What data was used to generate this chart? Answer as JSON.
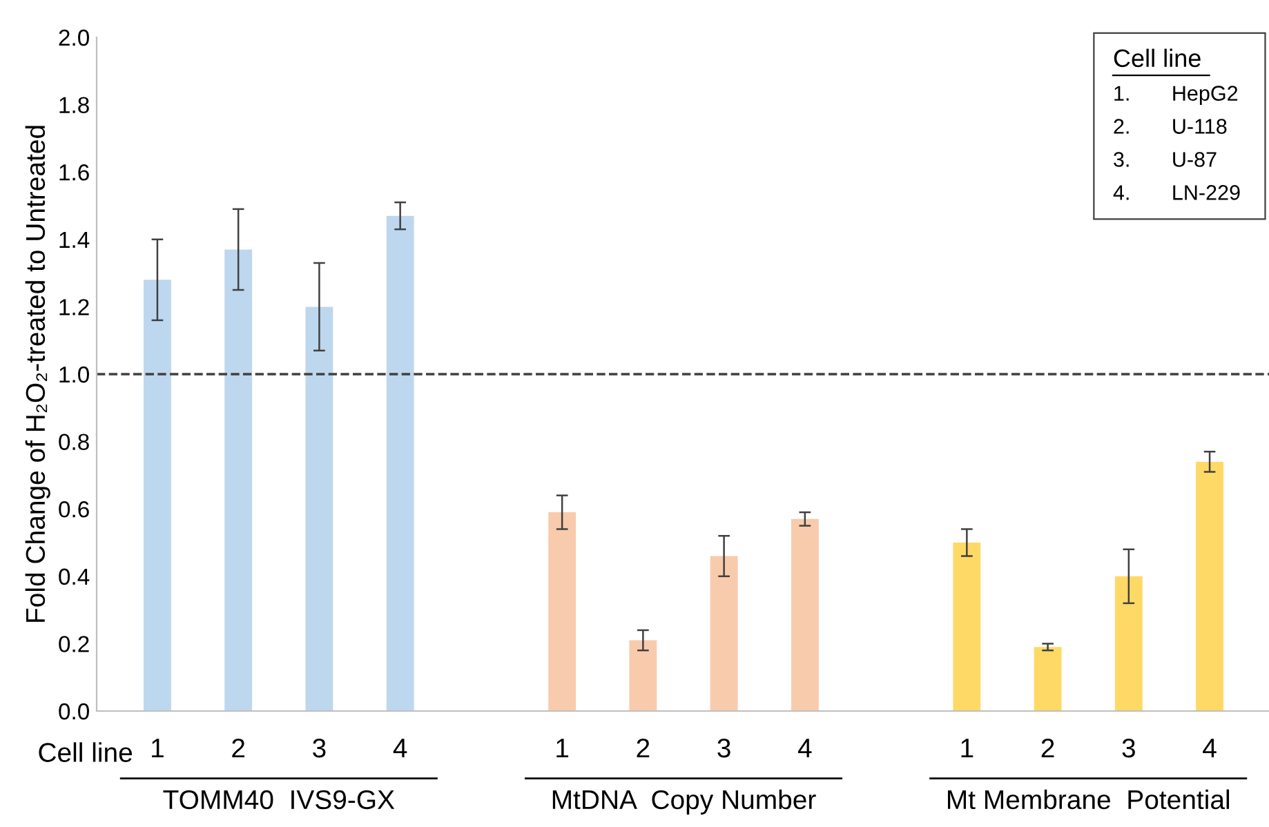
{
  "chart_data": {
    "type": "bar",
    "ylabel": "Fold Change of H₂O₂-treated to Untreated",
    "categories": [
      "1",
      "2",
      "3",
      "4",
      null,
      "1",
      "2",
      "3",
      "4",
      null,
      "1",
      "2",
      "3",
      "4"
    ],
    "values": [
      1.28,
      1.37,
      1.2,
      1.47,
      null,
      0.59,
      0.21,
      0.46,
      0.57,
      null,
      0.5,
      0.19,
      0.4,
      0.74
    ],
    "errors": [
      0.12,
      0.12,
      0.13,
      0.04,
      null,
      0.05,
      0.03,
      0.06,
      0.02,
      null,
      0.04,
      0.01,
      0.08,
      0.03
    ],
    "colors": [
      "#bdd7ee",
      "#bdd7ee",
      "#bdd7ee",
      "#bdd7ee",
      "#ffffff",
      "#f8cbad",
      "#f8cbad",
      "#f8cbad",
      "#f8cbad",
      "#ffffff",
      "#ffd966",
      "#ffd966",
      "#ffd966",
      "#ffd966"
    ],
    "ylim": [
      0,
      2.0
    ],
    "yticks": [
      {
        "value": 0,
        "label": "0.0"
      },
      {
        "value": 0.2,
        "label": "0.2"
      },
      {
        "value": 0.4,
        "label": "0.4"
      },
      {
        "value": 0.6,
        "label": "0.6"
      },
      {
        "value": 0.8,
        "label": "0.8"
      },
      {
        "value": 1.0,
        "label": "1.0"
      },
      {
        "value": 1.2,
        "label": "1.2"
      },
      {
        "value": 1.4,
        "label": "1.4"
      },
      {
        "value": 1.6,
        "label": "1.6"
      },
      {
        "value": 1.8,
        "label": "1.8"
      },
      {
        "value": 2.0,
        "label": "2.0"
      }
    ],
    "ref_lines": [
      {
        "axis": "y",
        "value": 1.0,
        "label": null,
        "color": "#404040",
        "line_style": "dashed"
      }
    ],
    "grid": false,
    "annotations": [
      "Cell line",
      "TOMM40  IVS9-GX",
      "MtDNA  Copy Number",
      "Mt Membrane  Potential",
      "Cell line",
      "1.       HepG2",
      "2.       U-118",
      "3.       U-87",
      "4.       LN-229"
    ]
  }
}
